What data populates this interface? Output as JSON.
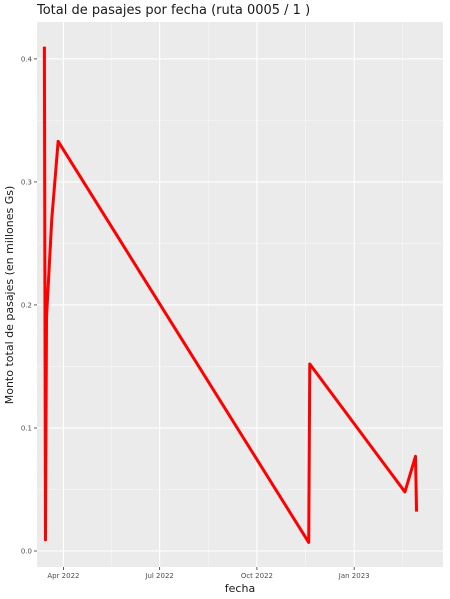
{
  "chart_data": {
    "type": "line",
    "title": "Total de pasajes por fecha (ruta 0005 / 1 )",
    "xlabel": "fecha",
    "ylabel": "Monto total de pasajes (en millones Gs)",
    "x_ticks": [
      {
        "label": "Apr 2022",
        "date": "2022-04-01"
      },
      {
        "label": "Jul 2022",
        "date": "2022-07-01"
      },
      {
        "label": "Oct 2022",
        "date": "2022-10-01"
      },
      {
        "label": "Jan 2023",
        "date": "2023-01-01"
      }
    ],
    "y_ticks": [
      0.0,
      0.1,
      0.2,
      0.3,
      0.4
    ],
    "y_tick_labels": [
      "0.0",
      "0.1",
      "0.2",
      "0.3",
      "0.4"
    ],
    "xlim": [
      "2022-03-07",
      "2023-03-26"
    ],
    "ylim": [
      -0.013,
      0.43
    ],
    "grid": true,
    "series": [
      {
        "color": "#ff0000",
        "points": [
          {
            "x": "2022-03-14",
            "y": 0.41
          },
          {
            "x": "2022-03-15",
            "y": 0.009
          },
          {
            "x": "2022-03-16",
            "y": 0.19
          },
          {
            "x": "2022-03-21",
            "y": 0.27
          },
          {
            "x": "2022-03-27",
            "y": 0.333
          },
          {
            "x": "2022-11-19",
            "y": 0.007
          },
          {
            "x": "2022-11-20",
            "y": 0.152
          },
          {
            "x": "2023-02-18",
            "y": 0.048
          },
          {
            "x": "2023-02-28",
            "y": 0.077
          },
          {
            "x": "2023-03-01",
            "y": 0.032
          }
        ]
      }
    ]
  }
}
